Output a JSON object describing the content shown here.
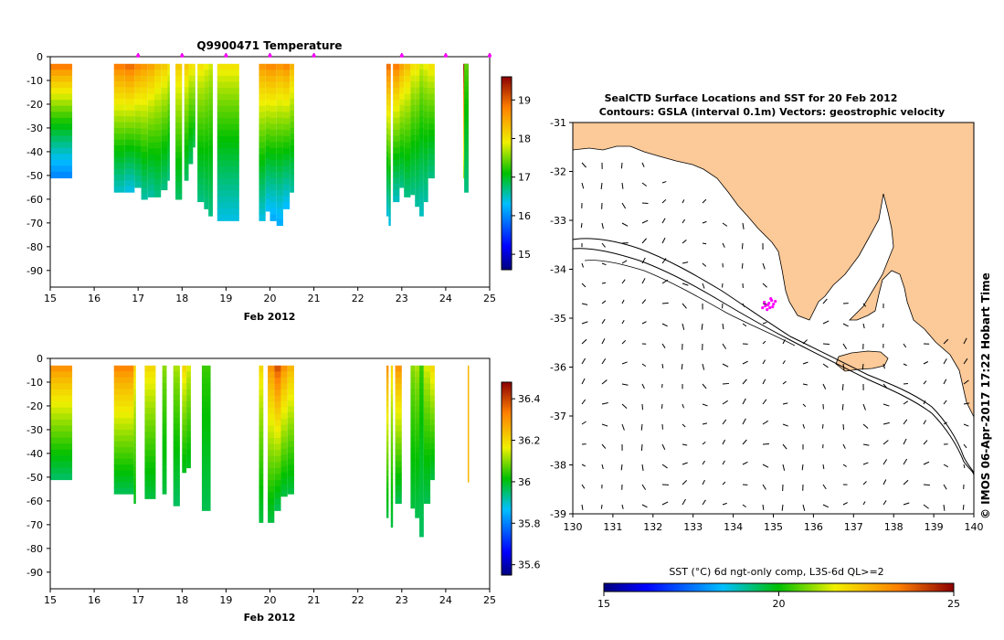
{
  "chart_data": [
    {
      "type": "heatmap",
      "title": "Q9900471  Temperature",
      "xlabel": "Feb 2012",
      "ylabel": "",
      "xlim": [
        15,
        25
      ],
      "ylim": [
        0,
        -97
      ],
      "x_ticks": [
        "15",
        "16",
        "17",
        "18",
        "19",
        "20",
        "21",
        "22",
        "23",
        "24",
        "25"
      ],
      "y_ticks": [
        "0",
        "-10",
        "-20",
        "-30",
        "-40",
        "-50",
        "-60",
        "-70",
        "-80",
        "-90"
      ],
      "colorbar": {
        "min": 14.6,
        "max": 19.6,
        "ticks": [
          "15",
          "16",
          "17",
          "18",
          "19"
        ]
      },
      "profile_markers_x": [
        17,
        18,
        19,
        20,
        21,
        23,
        24,
        25
      ],
      "profiles": [
        {
          "x": 15.0,
          "w": 0.5,
          "depth": 51,
          "top": 18.8,
          "bottom": 16.0
        },
        {
          "x": 16.45,
          "w": 0.25,
          "depth": 57,
          "top": 18.8,
          "bottom": 16.5
        },
        {
          "x": 16.7,
          "w": 0.22,
          "depth": 57,
          "top": 18.9,
          "bottom": 16.4
        },
        {
          "x": 16.92,
          "w": 0.15,
          "depth": 55,
          "top": 18.7,
          "bottom": 16.6
        },
        {
          "x": 17.07,
          "w": 0.15,
          "depth": 60,
          "top": 18.6,
          "bottom": 16.6
        },
        {
          "x": 17.22,
          "w": 0.15,
          "depth": 59,
          "top": 18.5,
          "bottom": 16.6
        },
        {
          "x": 17.37,
          "w": 0.15,
          "depth": 59,
          "top": 18.3,
          "bottom": 16.7
        },
        {
          "x": 17.52,
          "w": 0.15,
          "depth": 56,
          "top": 18.2,
          "bottom": 16.7
        },
        {
          "x": 17.67,
          "w": 0.05,
          "depth": 52,
          "top": 18.0,
          "bottom": 16.7
        },
        {
          "x": 17.85,
          "w": 0.15,
          "depth": 60,
          "top": 18.2,
          "bottom": 16.8
        },
        {
          "x": 18.05,
          "w": 0.1,
          "depth": 52,
          "top": 18.2,
          "bottom": 16.8
        },
        {
          "x": 18.15,
          "w": 0.1,
          "depth": 45,
          "top": 18.0,
          "bottom": 16.8
        },
        {
          "x": 18.25,
          "w": 0.05,
          "depth": 38,
          "top": 18.0,
          "bottom": 16.9
        },
        {
          "x": 18.35,
          "w": 0.15,
          "depth": 61,
          "top": 18.0,
          "bottom": 16.7
        },
        {
          "x": 18.5,
          "w": 0.1,
          "depth": 64,
          "top": 17.9,
          "bottom": 16.7
        },
        {
          "x": 18.6,
          "w": 0.1,
          "depth": 67,
          "top": 17.8,
          "bottom": 16.7
        },
        {
          "x": 18.8,
          "w": 0.5,
          "depth": 69,
          "top": 18.0,
          "bottom": 16.4
        },
        {
          "x": 19.75,
          "w": 0.15,
          "depth": 69,
          "top": 18.6,
          "bottom": 16.4
        },
        {
          "x": 19.9,
          "w": 0.1,
          "depth": 65,
          "top": 18.7,
          "bottom": 16.3
        },
        {
          "x": 20.0,
          "w": 0.15,
          "depth": 69,
          "top": 18.7,
          "bottom": 16.2
        },
        {
          "x": 20.15,
          "w": 0.15,
          "depth": 71,
          "top": 18.6,
          "bottom": 16.2
        },
        {
          "x": 20.3,
          "w": 0.15,
          "depth": 64,
          "top": 18.7,
          "bottom": 16.3
        },
        {
          "x": 20.45,
          "w": 0.1,
          "depth": 57,
          "top": 18.4,
          "bottom": 16.6
        },
        {
          "x": 22.65,
          "w": 0.05,
          "depth": 67,
          "top": 18.9,
          "bottom": 16.4
        },
        {
          "x": 22.7,
          "w": 0.05,
          "depth": 71,
          "top": 18.9,
          "bottom": 16.4
        },
        {
          "x": 22.8,
          "w": 0.15,
          "depth": 61,
          "top": 18.8,
          "bottom": 16.5
        },
        {
          "x": 22.95,
          "w": 0.1,
          "depth": 55,
          "top": 18.5,
          "bottom": 16.7
        },
        {
          "x": 23.05,
          "w": 0.15,
          "depth": 59,
          "top": 18.3,
          "bottom": 16.7
        },
        {
          "x": 23.2,
          "w": 0.1,
          "depth": 58,
          "top": 18.0,
          "bottom": 16.7
        },
        {
          "x": 23.3,
          "w": 0.1,
          "depth": 63,
          "top": 18.0,
          "bottom": 16.6
        },
        {
          "x": 23.4,
          "w": 0.1,
          "depth": 67,
          "top": 17.8,
          "bottom": 16.5
        },
        {
          "x": 23.5,
          "w": 0.1,
          "depth": 61,
          "top": 17.9,
          "bottom": 16.6
        },
        {
          "x": 23.6,
          "w": 0.15,
          "depth": 51,
          "top": 18.0,
          "bottom": 16.7
        },
        {
          "x": 24.4,
          "w": 0.12,
          "depth": 51,
          "top": 19.5,
          "bottom": 17.6
        },
        {
          "x": 24.42,
          "w": 0.1,
          "depth": 57,
          "top": 17.4,
          "bottom": 16.7
        }
      ]
    },
    {
      "type": "heatmap",
      "title": "",
      "xlabel": "Feb 2012",
      "xlim": [
        15,
        25
      ],
      "ylim": [
        0,
        -97
      ],
      "x_ticks": [
        "15",
        "16",
        "17",
        "18",
        "19",
        "20",
        "21",
        "22",
        "23",
        "24",
        "25"
      ],
      "y_ticks": [
        "0",
        "-10",
        "-20",
        "-30",
        "-40",
        "-50",
        "-60",
        "-70",
        "-80",
        "-90"
      ],
      "colorbar": {
        "min": 35.55,
        "max": 36.48,
        "ticks": [
          "35.6",
          "35.8",
          "36",
          "36.2",
          "36.4"
        ]
      },
      "profiles": [
        {
          "x": 15.0,
          "w": 0.5,
          "depth": 51,
          "top": 36.3,
          "bottom": 35.96
        },
        {
          "x": 16.45,
          "w": 0.45,
          "depth": 57,
          "top": 36.32,
          "bottom": 35.97
        },
        {
          "x": 16.9,
          "w": 0.05,
          "depth": 61,
          "top": 36.2,
          "bottom": 36.0
        },
        {
          "x": 17.15,
          "w": 0.25,
          "depth": 59,
          "top": 36.2,
          "bottom": 35.98
        },
        {
          "x": 17.55,
          "w": 0.1,
          "depth": 57,
          "top": 36.1,
          "bottom": 35.98
        },
        {
          "x": 17.8,
          "w": 0.15,
          "depth": 62,
          "top": 36.12,
          "bottom": 35.96
        },
        {
          "x": 18.0,
          "w": 0.1,
          "depth": 48,
          "top": 36.2,
          "bottom": 36.0
        },
        {
          "x": 18.1,
          "w": 0.1,
          "depth": 46,
          "top": 36.15,
          "bottom": 36.0
        },
        {
          "x": 18.45,
          "w": 0.2,
          "depth": 64,
          "top": 36.05,
          "bottom": 35.97
        },
        {
          "x": 19.75,
          "w": 0.1,
          "depth": 69,
          "top": 36.2,
          "bottom": 35.98
        },
        {
          "x": 19.95,
          "w": 0.15,
          "depth": 69,
          "top": 36.3,
          "bottom": 35.98
        },
        {
          "x": 20.1,
          "w": 0.15,
          "depth": 64,
          "top": 36.38,
          "bottom": 35.97
        },
        {
          "x": 20.25,
          "w": 0.15,
          "depth": 58,
          "top": 36.3,
          "bottom": 35.98
        },
        {
          "x": 20.4,
          "w": 0.15,
          "depth": 57,
          "top": 36.25,
          "bottom": 35.98
        },
        {
          "x": 22.65,
          "w": 0.05,
          "depth": 67,
          "top": 36.3,
          "bottom": 35.98
        },
        {
          "x": 22.75,
          "w": 0.05,
          "depth": 71,
          "top": 36.2,
          "bottom": 35.98
        },
        {
          "x": 22.85,
          "w": 0.15,
          "depth": 61,
          "top": 36.3,
          "bottom": 35.97
        },
        {
          "x": 23.2,
          "w": 0.1,
          "depth": 63,
          "top": 36.1,
          "bottom": 35.98
        },
        {
          "x": 23.3,
          "w": 0.1,
          "depth": 67,
          "top": 36.12,
          "bottom": 35.97
        },
        {
          "x": 23.4,
          "w": 0.1,
          "depth": 75,
          "top": 36.05,
          "bottom": 35.96
        },
        {
          "x": 23.5,
          "w": 0.15,
          "depth": 61,
          "top": 36.15,
          "bottom": 35.97
        },
        {
          "x": 23.65,
          "w": 0.1,
          "depth": 51,
          "top": 36.2,
          "bottom": 35.98
        },
        {
          "x": 24.5,
          "w": 0.02,
          "depth": 52,
          "top": 36.25,
          "bottom": 36.25
        }
      ]
    },
    {
      "type": "map",
      "title": "SealCTD Surface Locations and SST for 20 Feb 2012",
      "subtitle": "Contours: GSLA (interval 0.1m) Vectors: geostrophic velocity",
      "xlim": [
        130,
        140
      ],
      "ylim": [
        -39,
        -31
      ],
      "x_ticks": [
        "130",
        "131",
        "132",
        "133",
        "134",
        "135",
        "136",
        "137",
        "138",
        "139",
        "140"
      ],
      "y_ticks": [
        "-31",
        "-32",
        "-33",
        "-34",
        "-35",
        "-36",
        "-37",
        "-38",
        "-39"
      ],
      "seal_cluster": {
        "lon": 134.8,
        "lat": -34.75
      },
      "colorbar": {
        "label": "SST (°C) 6d ngt-only comp, L3S-6d QL>=2",
        "min": 15,
        "max": 25,
        "ticks": [
          "15",
          "20",
          "25"
        ]
      },
      "side_label": "© IMOS 06-Apr-2017 17:22 Hobart Time"
    }
  ]
}
